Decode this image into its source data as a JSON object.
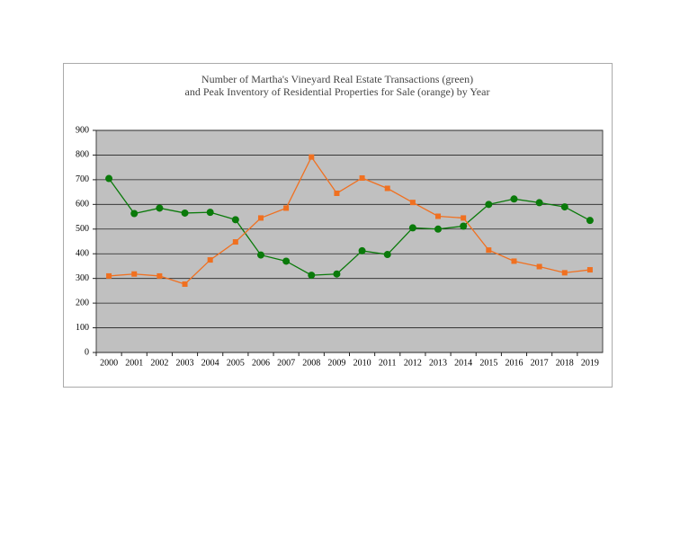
{
  "chart_data": {
    "type": "line",
    "title": [
      "Number of Martha's Vineyard Real Estate Transactions (green)",
      "and Peak Inventory of  Residential Properties for Sale (orange) by Year"
    ],
    "categories": [
      "2000",
      "2001",
      "2002",
      "2003",
      "2004",
      "2005",
      "2006",
      "2007",
      "2008",
      "2009",
      "2010",
      "2011",
      "2012",
      "2013",
      "2014",
      "2015",
      "2016",
      "2017",
      "2018",
      "2019"
    ],
    "series": [
      {
        "color": "#0a7a0a",
        "marker": "circle",
        "values": [
          705,
          563,
          585,
          565,
          568,
          538,
          395,
          370,
          313,
          318,
          412,
          397,
          505,
          500,
          512,
          600,
          622,
          607,
          590,
          535
        ]
      },
      {
        "color": "#f07020",
        "marker": "square",
        "values": [
          310,
          318,
          310,
          277,
          375,
          448,
          545,
          585,
          792,
          645,
          707,
          665,
          608,
          552,
          545,
          415,
          370,
          348,
          323,
          335
        ]
      }
    ],
    "ylim": [
      0,
      900
    ],
    "yticks": [
      0,
      100,
      200,
      300,
      400,
      500,
      600,
      700,
      800,
      900
    ],
    "grid": true
  }
}
